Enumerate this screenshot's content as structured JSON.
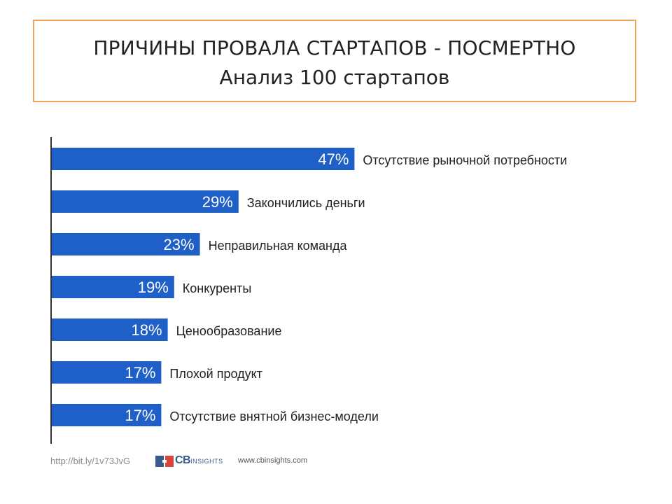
{
  "header": {
    "title": "ПРИЧИНЫ ПРОВАЛА СТАРТАПОВ - ПОСМЕРТНО",
    "subtitle": "Анализ 100 стартапов"
  },
  "footer": {
    "url": "http://bit.ly/1v73JvG",
    "logo_main": "CB",
    "logo_secondary": "INSIGHTS",
    "site": "www.cbinsights.com"
  },
  "colors": {
    "bar": "#1f5fc8",
    "title_border": "#f2a25c",
    "axis": "#333333"
  },
  "chart_data": {
    "type": "bar",
    "orientation": "horizontal",
    "categories": [
      "Отсутствие рыночной потребности",
      "Закончились деньги",
      "Неправильная команда",
      "Конкуренты",
      "Ценообразование",
      "Плохой продукт",
      "Отсутствие внятной бизнес-модели"
    ],
    "values": [
      47,
      29,
      23,
      19,
      18,
      17,
      17
    ],
    "value_labels": [
      "47%",
      "29%",
      "23%",
      "19%",
      "18%",
      "17%",
      "17%"
    ],
    "unit": "%",
    "xlim": [
      0,
      100
    ],
    "grid": false,
    "legend": false
  }
}
